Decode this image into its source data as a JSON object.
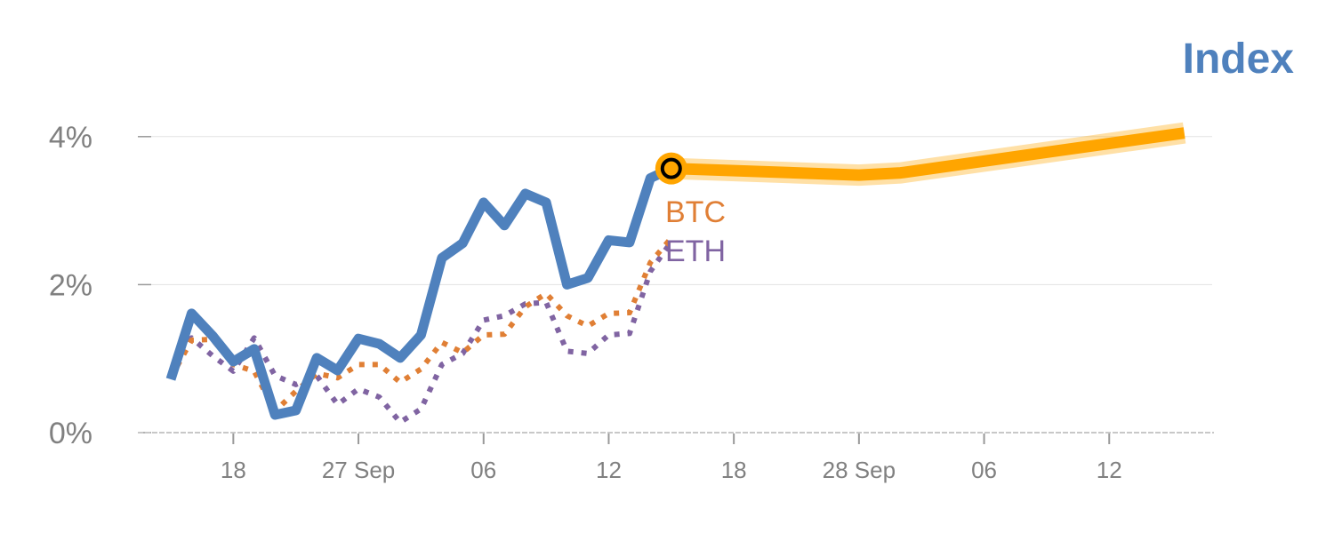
{
  "chart_data": {
    "type": "line",
    "title": "Index",
    "xlabel": "",
    "ylabel": "",
    "ylim": [
      0,
      4
    ],
    "yticks": [
      {
        "value": 0,
        "label": "0%"
      },
      {
        "value": 2,
        "label": "2%"
      },
      {
        "value": 4,
        "label": "4%"
      }
    ],
    "xticks": [
      {
        "index": 3,
        "label": "18"
      },
      {
        "index": 9,
        "label": "27 Sep"
      },
      {
        "index": 15,
        "label": "06"
      },
      {
        "index": 21,
        "label": "12"
      },
      {
        "index": 27,
        "label": "18"
      },
      {
        "index": 33,
        "label": "28 Sep"
      },
      {
        "index": 39,
        "label": "06"
      },
      {
        "index": 45,
        "label": "12"
      }
    ],
    "grid": true,
    "series": [
      {
        "name": "Index",
        "color": "#4f81bd",
        "style": "solid",
        "values": [
          0.72,
          1.61,
          1.31,
          0.96,
          1.13,
          0.24,
          0.3,
          1.01,
          0.84,
          1.27,
          1.2,
          1.01,
          1.32,
          2.36,
          2.56,
          3.11,
          2.8,
          3.23,
          3.11,
          2.0,
          2.09,
          2.6,
          2.57,
          3.44,
          3.57
        ]
      },
      {
        "name": "BTC",
        "color": "#e07f35",
        "style": "dotted",
        "values": [
          0.74,
          1.25,
          1.26,
          0.92,
          0.83,
          0.29,
          0.56,
          0.8,
          0.74,
          0.92,
          0.92,
          0.68,
          0.86,
          1.22,
          1.08,
          1.32,
          1.33,
          1.7,
          1.88,
          1.58,
          1.44,
          1.61,
          1.62,
          2.3,
          2.63
        ]
      },
      {
        "name": "ETH",
        "color": "#8064a2",
        "style": "dotted",
        "values": [
          0.74,
          1.28,
          1.04,
          0.83,
          1.28,
          0.77,
          0.65,
          0.77,
          0.38,
          0.59,
          0.48,
          0.14,
          0.32,
          0.92,
          1.07,
          1.52,
          1.58,
          1.74,
          1.76,
          1.1,
          1.07,
          1.32,
          1.34,
          2.18,
          2.58
        ]
      }
    ],
    "forecast": {
      "color": "#ffa500",
      "points": [
        {
          "index": 24,
          "value": 3.57
        },
        {
          "index": 33,
          "value": 3.48
        },
        {
          "index": 35,
          "value": 3.51
        },
        {
          "index": 48.6,
          "value": 4.05
        }
      ]
    }
  }
}
